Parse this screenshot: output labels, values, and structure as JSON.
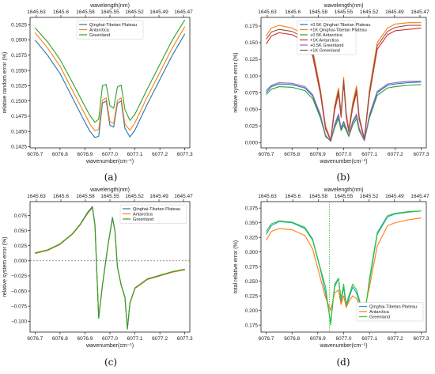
{
  "figure": {
    "colors": {
      "blue": "#1f77b4",
      "orange": "#ff7f0e",
      "green": "#2ca02c",
      "red": "#d62728",
      "purple": "#9467bd",
      "brown": "#8c564b",
      "teal": "#17a2b8",
      "lime": "#35c435"
    }
  },
  "chart_data": [
    {
      "type": "line",
      "panel": "(a)",
      "xlabel": "wavenumber(cm⁻¹)",
      "ylabel": "relative random error (%)",
      "top_xlabel": "wavelength(nm)",
      "top_ticks": [
        "1645.63",
        "1645.6",
        "1645.58",
        "1645.55",
        "1645.52",
        "1645.49",
        "1645.47"
      ],
      "xticks": [
        "6076.7",
        "6076.8",
        "6076.9",
        "6077.0",
        "6077.1",
        "6077.2",
        "6077.3"
      ],
      "yticks": [
        "0.1425",
        "0.1450",
        "0.1475",
        "0.1500",
        "0.1525",
        "0.1550",
        "0.1575",
        "0.1600",
        "0.1625"
      ],
      "xlim": [
        6076.68,
        6077.32
      ],
      "ylim": [
        0.1423,
        0.1637
      ],
      "legend_position": "top-center",
      "x": [
        6076.7,
        6076.75,
        6076.8,
        6076.85,
        6076.9,
        6076.92,
        6076.94,
        6076.955,
        6076.97,
        6076.985,
        6077.0,
        6077.015,
        6077.03,
        6077.045,
        6077.06,
        6077.08,
        6077.1,
        6077.15,
        6077.2,
        6077.25,
        6077.3
      ],
      "series": [
        {
          "name": "Qinghai-Tibetan Plateau",
          "color": "#1f77b4",
          "values": [
            0.16,
            0.1575,
            0.1545,
            0.1505,
            0.1465,
            0.145,
            0.144,
            0.1442,
            0.1496,
            0.15,
            0.146,
            0.1457,
            0.1496,
            0.15,
            0.1455,
            0.1441,
            0.1452,
            0.1495,
            0.1535,
            0.1575,
            0.161
          ]
        },
        {
          "name": "Antarctica",
          "color": "#ff7f0e",
          "values": [
            0.1612,
            0.1587,
            0.1557,
            0.1517,
            0.1478,
            0.1462,
            0.1451,
            0.1453,
            0.1501,
            0.1505,
            0.1466,
            0.1463,
            0.1501,
            0.1505,
            0.1462,
            0.1452,
            0.1464,
            0.1507,
            0.1547,
            0.1587,
            0.1622
          ]
        },
        {
          "name": "Greenland",
          "color": "#2ca02c",
          "values": [
            0.162,
            0.1597,
            0.1568,
            0.153,
            0.1491,
            0.1476,
            0.1465,
            0.147,
            0.1525,
            0.1527,
            0.1492,
            0.1488,
            0.1523,
            0.1526,
            0.1486,
            0.1468,
            0.1478,
            0.152,
            0.156,
            0.16,
            0.1633
          ]
        }
      ]
    },
    {
      "type": "line",
      "panel": "(b)",
      "xlabel": "wavenumber(cm⁻¹)",
      "ylabel": "relative system error (%)",
      "top_xlabel": "wavelength(nm)",
      "top_ticks": [
        "1645.63",
        "1645.6",
        "1645.58",
        "1645.55",
        "1645.52",
        "1645.49",
        "1645.47"
      ],
      "xticks": [
        "6076.7",
        "6076.8",
        "6076.9",
        "6077.0",
        "6077.1",
        "6077.2",
        "6077.3"
      ],
      "yticks": [
        "0.000",
        "0.025",
        "0.050",
        "0.075",
        "0.100",
        "0.125",
        "0.150",
        "0.175"
      ],
      "xlim": [
        6076.68,
        6077.32
      ],
      "ylim": [
        -0.008,
        0.188
      ],
      "legend_position": "top-left",
      "x": [
        6076.7,
        6076.72,
        6076.75,
        6076.8,
        6076.85,
        6076.88,
        6076.91,
        6076.93,
        6076.95,
        6076.965,
        6076.98,
        6076.99,
        6077.0,
        6077.01,
        6077.02,
        6077.035,
        6077.05,
        6077.06,
        6077.08,
        6077.1,
        6077.13,
        6077.17,
        6077.2,
        6077.25,
        6077.3
      ],
      "series": [
        {
          "name": "+0.5K Qinghai-Tibetan Plateau",
          "color": "#1f77b4",
          "values": [
            0.075,
            0.084,
            0.088,
            0.087,
            0.082,
            0.07,
            0.04,
            0.01,
            0.002,
            0.025,
            0.04,
            0.02,
            0.03,
            0.02,
            0.01,
            0.03,
            0.04,
            0.02,
            0.003,
            0.04,
            0.075,
            0.086,
            0.088,
            0.09,
            0.091
          ]
        },
        {
          "name": "+1K Qinghai-Tibetan Plateau",
          "color": "#ff7f0e",
          "values": [
            0.16,
            0.172,
            0.176,
            0.172,
            0.162,
            0.14,
            0.08,
            0.025,
            0.004,
            0.055,
            0.082,
            0.045,
            0.098,
            0.045,
            0.02,
            0.06,
            0.085,
            0.04,
            0.006,
            0.08,
            0.15,
            0.172,
            0.178,
            0.18,
            0.18
          ]
        },
        {
          "name": "+0.5K Antarctica",
          "color": "#2ca02c",
          "values": [
            0.072,
            0.08,
            0.084,
            0.083,
            0.078,
            0.066,
            0.037,
            0.009,
            0.002,
            0.022,
            0.036,
            0.018,
            0.026,
            0.018,
            0.009,
            0.026,
            0.036,
            0.018,
            0.003,
            0.037,
            0.071,
            0.082,
            0.084,
            0.086,
            0.087
          ]
        },
        {
          "name": "+1K Antarctica",
          "color": "#d62728",
          "values": [
            0.148,
            0.16,
            0.165,
            0.162,
            0.152,
            0.13,
            0.073,
            0.02,
            0.003,
            0.048,
            0.073,
            0.038,
            0.09,
            0.038,
            0.016,
            0.052,
            0.075,
            0.035,
            0.005,
            0.072,
            0.14,
            0.162,
            0.168,
            0.17,
            0.172
          ]
        },
        {
          "name": "+0.5K Greenland",
          "color": "#9467bd",
          "values": [
            0.078,
            0.086,
            0.09,
            0.089,
            0.084,
            0.072,
            0.042,
            0.011,
            0.002,
            0.027,
            0.043,
            0.022,
            0.032,
            0.022,
            0.011,
            0.032,
            0.043,
            0.022,
            0.003,
            0.042,
            0.077,
            0.088,
            0.09,
            0.092,
            0.092
          ]
        },
        {
          "name": "+1K Greenland",
          "color": "#8c564b",
          "values": [
            0.155,
            0.166,
            0.17,
            0.167,
            0.157,
            0.135,
            0.077,
            0.022,
            0.003,
            0.052,
            0.078,
            0.04,
            0.094,
            0.04,
            0.018,
            0.056,
            0.08,
            0.038,
            0.005,
            0.076,
            0.145,
            0.167,
            0.173,
            0.176,
            0.176
          ]
        }
      ]
    },
    {
      "type": "line",
      "panel": "(c)",
      "xlabel": "wavenumber(cm⁻¹)",
      "ylabel": "relative system error (%)",
      "top_xlabel": "wavelength(nm)",
      "top_ticks": [
        "1645.63",
        "1645.6",
        "1645.58",
        "1645.55",
        "1645.52",
        "1645.49",
        "1645.47"
      ],
      "xticks": [
        "6076.7",
        "6076.8",
        "6076.9",
        "6077.0",
        "6077.1",
        "6077.2",
        "6077.3"
      ],
      "yticks": [
        "−0.100",
        "−0.075",
        "−0.050",
        "−0.025",
        "0.000",
        "0.025",
        "0.050",
        "0.075"
      ],
      "xlim": [
        6076.68,
        6077.32
      ],
      "ylim": [
        -0.118,
        0.098
      ],
      "reference_line": 0,
      "legend_position": "top-right",
      "x": [
        6076.7,
        6076.75,
        6076.8,
        6076.85,
        6076.88,
        6076.91,
        6076.93,
        6076.94,
        6076.955,
        6076.97,
        6076.99,
        6077.01,
        6077.02,
        6077.03,
        6077.045,
        6077.06,
        6077.07,
        6077.08,
        6077.1,
        6077.15,
        6077.2,
        6077.25,
        6077.3
      ],
      "series": [
        {
          "name": "Qinghai-Tibetan Plateau",
          "color": "#1f77b4",
          "values": [
            0.013,
            0.018,
            0.028,
            0.045,
            0.06,
            0.08,
            0.09,
            0.06,
            -0.095,
            -0.04,
            0.02,
            0.072,
            0.05,
            -0.01,
            -0.04,
            -0.06,
            -0.113,
            -0.07,
            -0.045,
            -0.03,
            -0.024,
            -0.018,
            -0.014
          ]
        },
        {
          "name": "Antarctica",
          "color": "#ff7f0e",
          "values": [
            0.012,
            0.017,
            0.027,
            0.044,
            0.059,
            0.078,
            0.088,
            0.058,
            -0.094,
            -0.041,
            0.019,
            0.07,
            0.049,
            -0.011,
            -0.041,
            -0.061,
            -0.112,
            -0.071,
            -0.046,
            -0.031,
            -0.025,
            -0.019,
            -0.015
          ]
        },
        {
          "name": "Greenland",
          "color": "#2ca02c",
          "values": [
            0.013,
            0.018,
            0.028,
            0.045,
            0.06,
            0.079,
            0.089,
            0.059,
            -0.095,
            -0.04,
            0.02,
            0.071,
            0.05,
            -0.01,
            -0.04,
            -0.06,
            -0.113,
            -0.07,
            -0.045,
            -0.03,
            -0.024,
            -0.018,
            -0.014
          ]
        }
      ]
    },
    {
      "type": "line",
      "panel": "(d)",
      "xlabel": "wavenumber(cm⁻¹)",
      "ylabel": "total relative error (%)",
      "top_xlabel": "wavelength(nm)",
      "top_ticks": [
        "1645.63",
        "1645.6",
        "1645.58",
        "1645.55",
        "1645.52",
        "1645.49",
        "1645.47"
      ],
      "xticks": [
        "6076.7",
        "6076.8",
        "6076.9",
        "6077.0",
        "6077.1",
        "6077.2",
        "6077.3"
      ],
      "yticks": [
        "0.175",
        "0.200",
        "0.225",
        "0.250",
        "0.275",
        "0.300",
        "0.325",
        "0.350",
        "0.375"
      ],
      "xlim": [
        6076.68,
        6077.32
      ],
      "ylim": [
        0.163,
        0.386
      ],
      "vertical_line_x": 6076.945,
      "legend_position": "bottom-right",
      "x": [
        6076.7,
        6076.72,
        6076.75,
        6076.8,
        6076.85,
        6076.88,
        6076.91,
        6076.93,
        6076.95,
        6076.965,
        6076.98,
        6076.99,
        6077.0,
        6077.01,
        6077.02,
        6077.035,
        6077.05,
        6077.06,
        6077.08,
        6077.1,
        6077.13,
        6077.17,
        6077.2,
        6077.25,
        6077.3
      ],
      "series": [
        {
          "name": "Qinghai-Tibetan Plateau",
          "color": "#17a2b8",
          "values": [
            0.33,
            0.345,
            0.352,
            0.35,
            0.34,
            0.32,
            0.27,
            0.23,
            0.18,
            0.24,
            0.255,
            0.215,
            0.24,
            0.205,
            0.22,
            0.24,
            0.23,
            0.215,
            0.19,
            0.25,
            0.33,
            0.36,
            0.365,
            0.368,
            0.37
          ]
        },
        {
          "name": "Antarctica",
          "color": "#ff7f0e",
          "values": [
            0.32,
            0.335,
            0.34,
            0.338,
            0.328,
            0.305,
            0.255,
            0.222,
            0.2,
            0.23,
            0.235,
            0.21,
            0.225,
            0.205,
            0.215,
            0.225,
            0.22,
            0.21,
            0.2,
            0.24,
            0.31,
            0.345,
            0.35,
            0.355,
            0.358
          ]
        },
        {
          "name": "Greenland",
          "color": "#35c435",
          "values": [
            0.335,
            0.348,
            0.353,
            0.351,
            0.342,
            0.322,
            0.272,
            0.24,
            0.175,
            0.245,
            0.255,
            0.22,
            0.245,
            0.21,
            0.225,
            0.245,
            0.235,
            0.22,
            0.185,
            0.255,
            0.333,
            0.362,
            0.366,
            0.369,
            0.37
          ]
        }
      ]
    }
  ]
}
